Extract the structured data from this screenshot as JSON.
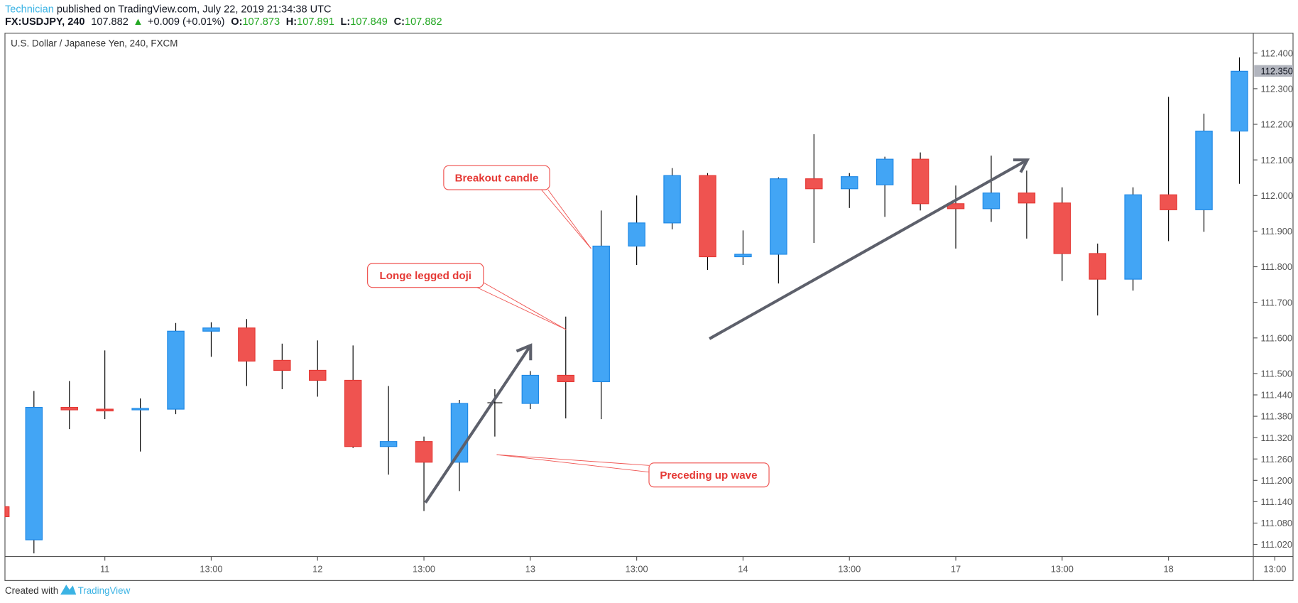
{
  "header": {
    "author": "Technician",
    "published": " published on TradingView.com, July 22, 2019 21:34:38 UTC",
    "symbol": "FX:USDJPY, 240",
    "last": "107.882",
    "change": "+0.009 (+0.01%)",
    "o_label": "O:",
    "o": "107.873",
    "h_label": "H:",
    "h": "107.891",
    "l_label": "L:",
    "l": "107.849",
    "c_label": "C:",
    "c": "107.882"
  },
  "chart_title": "U.S. Dollar / Japanese Yen, 240, FXCM",
  "footer": {
    "created": "Created with",
    "brand": "TradingView"
  },
  "annotations": {
    "breakout": "Breakout candle",
    "doji": "Longe legged doji",
    "wave": "Preceding up wave"
  },
  "colors": {
    "up": "#42a5f5",
    "up_border": "#1e88e5",
    "down": "#ef5350",
    "down_border": "#e53935",
    "arrow": "#5d606b"
  },
  "chart_data": {
    "type": "candlestick",
    "title": "U.S. Dollar / Japanese Yen, 240, FXCM",
    "ylim": [
      110.99,
      112.42
    ],
    "price_ticks": [
      "112.400",
      "112.300",
      "112.200",
      "112.100",
      "112.000",
      "111.900",
      "111.800",
      "111.700",
      "111.600",
      "111.500",
      "111.440",
      "111.380",
      "111.320",
      "111.260",
      "111.200",
      "111.140",
      "111.080",
      "111.020"
    ],
    "last_price_label": "112.350",
    "time_ticks": [
      {
        "label": "11",
        "bar": 2
      },
      {
        "label": "13:00",
        "bar": 5
      },
      {
        "label": "12",
        "bar": 8
      },
      {
        "label": "13:00",
        "bar": 11
      },
      {
        "label": "13",
        "bar": 14
      },
      {
        "label": "13:00",
        "bar": 17
      },
      {
        "label": "14",
        "bar": 20
      },
      {
        "label": "13:00",
        "bar": 23
      },
      {
        "label": "17",
        "bar": 26
      },
      {
        "label": "13:00",
        "bar": 29
      },
      {
        "label": "18",
        "bar": 32
      },
      {
        "label": "13:00",
        "bar": 35
      }
    ],
    "ohlc": [
      [
        111.126,
        111.126,
        111.098,
        111.098
      ],
      [
        111.033,
        111.451,
        110.995,
        111.405
      ],
      [
        111.405,
        111.479,
        111.344,
        111.398
      ],
      [
        111.4,
        111.565,
        111.372,
        111.395
      ],
      [
        111.398,
        111.43,
        111.281,
        111.402
      ],
      [
        111.4,
        111.642,
        111.386,
        111.619
      ],
      [
        111.619,
        111.644,
        111.547,
        111.628
      ],
      [
        111.628,
        111.653,
        111.465,
        111.535
      ],
      [
        111.537,
        111.584,
        111.456,
        111.509
      ],
      [
        111.509,
        111.593,
        111.435,
        111.481
      ],
      [
        111.481,
        111.579,
        111.291,
        111.295
      ],
      [
        111.295,
        111.465,
        111.216,
        111.309
      ],
      [
        111.309,
        111.323,
        111.114,
        111.251
      ],
      [
        111.251,
        111.426,
        111.17,
        111.416
      ],
      [
        111.416,
        111.456,
        111.323,
        111.418
      ],
      [
        111.416,
        111.507,
        111.4,
        111.495
      ],
      [
        111.495,
        111.66,
        111.374,
        111.477
      ],
      [
        111.477,
        111.958,
        111.372,
        111.858
      ],
      [
        111.858,
        112.0,
        111.805,
        111.923
      ],
      [
        111.923,
        112.077,
        111.905,
        112.056
      ],
      [
        112.056,
        112.063,
        111.791,
        111.828
      ],
      [
        111.828,
        111.902,
        111.805,
        111.835
      ],
      [
        111.835,
        112.051,
        111.753,
        112.047
      ],
      [
        112.047,
        112.172,
        111.867,
        112.019
      ],
      [
        112.019,
        112.063,
        111.965,
        112.053
      ],
      [
        112.03,
        112.109,
        111.94,
        112.102
      ],
      [
        112.102,
        112.121,
        111.958,
        111.977
      ],
      [
        111.977,
        112.028,
        111.851,
        111.963
      ],
      [
        111.963,
        112.112,
        111.926,
        112.007
      ],
      [
        112.007,
        112.07,
        111.879,
        111.979
      ],
      [
        111.979,
        112.023,
        111.76,
        111.837
      ],
      [
        111.837,
        111.865,
        111.663,
        111.765
      ],
      [
        111.765,
        112.023,
        111.733,
        112.002
      ],
      [
        112.002,
        112.277,
        111.872,
        111.96
      ],
      [
        111.96,
        112.23,
        111.898,
        112.181
      ],
      [
        112.181,
        112.388,
        112.033,
        112.349
      ]
    ]
  }
}
